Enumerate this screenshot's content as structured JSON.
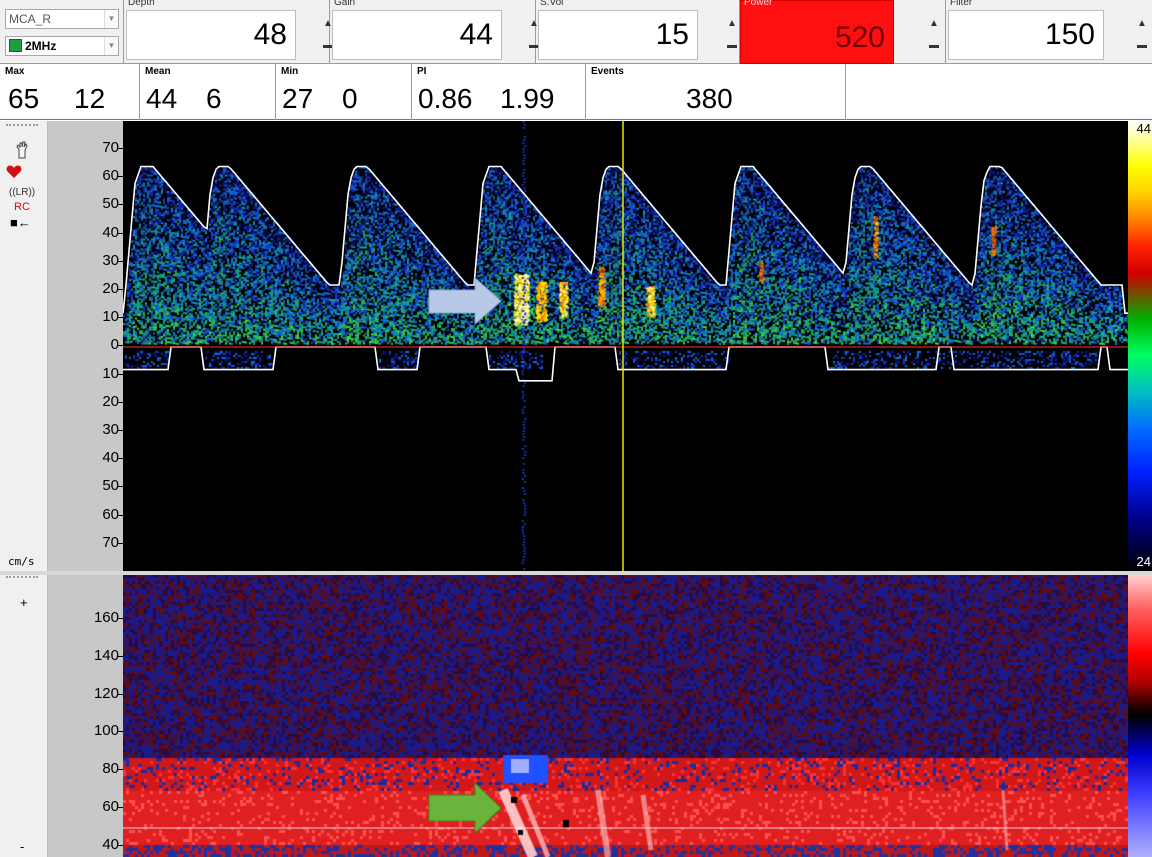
{
  "probe": {
    "vessel": "MCA_R",
    "frequency": "2MHz"
  },
  "controls": [
    {
      "id": "depth",
      "label": "Depth",
      "value": "48"
    },
    {
      "id": "gain",
      "label": "Gain",
      "value": "44"
    },
    {
      "id": "svol",
      "label": "S.Vol",
      "value": "15"
    },
    {
      "id": "power",
      "label": "Power",
      "value": "520"
    },
    {
      "id": "filter",
      "label": "Filter",
      "value": "150"
    }
  ],
  "stats": {
    "max": {
      "label": "Max",
      "v1": "65",
      "v2": "12"
    },
    "mean": {
      "label": "Mean",
      "v1": "44",
      "v2": "6"
    },
    "min": {
      "label": "Min",
      "v1": "27",
      "v2": "0"
    },
    "pi": {
      "label": "PI",
      "v1": "0.86",
      "v2": "1.99"
    },
    "events": {
      "label": "Events",
      "v1": "380"
    }
  },
  "left_icons": {
    "waveform": "((LR))",
    "rc": "RC",
    "direction": "■←",
    "plus": "+",
    "minus": "-"
  },
  "spectrum": {
    "unit": "cm/s",
    "ticks": [
      "70",
      "60",
      "50",
      "40",
      "30",
      "20",
      "10",
      "0",
      "10",
      "20",
      "30",
      "40",
      "50",
      "60",
      "70"
    ],
    "scale_max": "44",
    "scale_min": "24"
  },
  "mmode": {
    "ticks": [
      "160",
      "140",
      "120",
      "100",
      "80",
      "60",
      "40"
    ]
  },
  "colors": {
    "alert": "#ff1010",
    "arrow_blue": "#b8c8e8",
    "arrow_green": "#6ab43c",
    "cursor": "#e8e800",
    "envelope": "#ffffff"
  },
  "icons": [
    "heart-icon",
    "hand-icon",
    "arrow-left-icon",
    "blue-arrow-icon",
    "green-arrow-icon"
  ]
}
